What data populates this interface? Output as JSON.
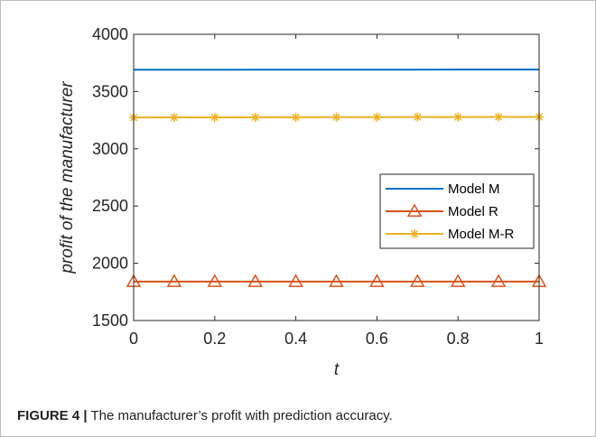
{
  "caption": {
    "label": "FIGURE 4 |",
    "text": " The manufacturer’s profit with prediction accuracy."
  },
  "chart_data": {
    "type": "line",
    "xlabel": "t",
    "ylabel": "profit of the manufacturer",
    "xlim": [
      0,
      1
    ],
    "ylim": [
      1500,
      4000
    ],
    "xticks": [
      0,
      0.2,
      0.4,
      0.6,
      0.8,
      1
    ],
    "xtick_labels": [
      "0",
      "0.2",
      "0.4",
      "0.6",
      "0.8",
      "1"
    ],
    "yticks": [
      1500,
      2000,
      2500,
      3000,
      3500,
      4000
    ],
    "ytick_labels": [
      "1500",
      "2000",
      "2500",
      "3000",
      "3500",
      "4000"
    ],
    "grid": false,
    "legend_position": "right",
    "x": [
      0,
      0.1,
      0.2,
      0.3,
      0.4,
      0.5,
      0.6,
      0.7,
      0.8,
      0.9,
      1
    ],
    "series": [
      {
        "name": "Model M",
        "color": "#0072BD",
        "marker": "none",
        "values": [
          3690,
          3690,
          3690,
          3691,
          3691,
          3691,
          3691,
          3691,
          3692,
          3692,
          3692
        ]
      },
      {
        "name": "Model R",
        "color": "#D95319",
        "marker": "triangle",
        "values": [
          1840,
          1840,
          1840,
          1840,
          1840,
          1840,
          1840,
          1840,
          1840,
          1840,
          1840
        ]
      },
      {
        "name": "Model M-R",
        "color": "#EDB120",
        "marker": "asterisk",
        "values": [
          3273,
          3274,
          3274,
          3275,
          3275,
          3276,
          3276,
          3277,
          3277,
          3278,
          3278
        ]
      }
    ]
  }
}
